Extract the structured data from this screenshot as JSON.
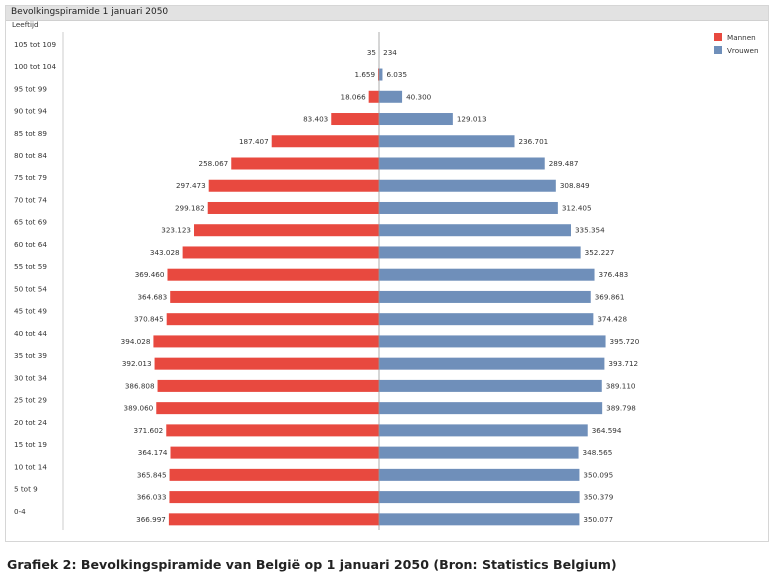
{
  "caption": "Grafiek 2: Bevolkingspiramide van België op 1 januari 2050 (Bron: Statistics Belgium)",
  "colors": {
    "mannen": "#e8493f",
    "vrouwen": "#6f8fba",
    "axis": "#999999",
    "grid": "#cccccc"
  },
  "chart_data": {
    "type": "bar",
    "orientation": "horizontal-population-pyramid",
    "title": "Bevolkingspiramide 1 januari 2050",
    "ylabel": "Leeftijd",
    "legend_position": "top-right",
    "categories": [
      "105 tot 109",
      "100 tot 104",
      "95 tot 99",
      "90 tot 94",
      "85 tot 89",
      "80 tot 84",
      "75 tot 79",
      "70 tot 74",
      "65 tot 69",
      "60 tot 64",
      "55 tot 59",
      "50 tot 54",
      "45 tot 49",
      "40 tot 44",
      "35 tot 39",
      "30 tot 34",
      "25 tot 29",
      "20 tot 24",
      "15 tot 19",
      "10 tot 14",
      "5 tot 9",
      "0-4"
    ],
    "series": [
      {
        "name": "Mannen",
        "values": [
          35,
          1659,
          18066,
          83403,
          187407,
          258067,
          297473,
          299182,
          323123,
          343028,
          369460,
          364683,
          370845,
          394028,
          392013,
          386808,
          389060,
          371602,
          364174,
          365845,
          366033,
          366997
        ],
        "labels": [
          "35",
          "1.659",
          "18.066",
          "83.403",
          "187.407",
          "258.067",
          "297.473",
          "299.182",
          "323.123",
          "343.028",
          "369.460",
          "364.683",
          "370.845",
          "394.028",
          "392.013",
          "386.808",
          "389.060",
          "371.602",
          "364.174",
          "365.845",
          "366.033",
          "366.997"
        ]
      },
      {
        "name": "Vrouwen",
        "values": [
          234,
          6035,
          40300,
          129013,
          236701,
          289487,
          308849,
          312405,
          335354,
          352227,
          376483,
          369861,
          374428,
          395720,
          393712,
          389110,
          389798,
          364594,
          348565,
          350095,
          350379,
          350077
        ],
        "labels": [
          "234",
          "6.035",
          "40.300",
          "129.013",
          "236.701",
          "289.487",
          "308.849",
          "312.405",
          "335.354",
          "352.227",
          "376.483",
          "369.861",
          "374.428",
          "395.720",
          "393.712",
          "389.110",
          "389.798",
          "364.594",
          "348.565",
          "350.095",
          "350.379",
          "350.077"
        ]
      }
    ]
  }
}
